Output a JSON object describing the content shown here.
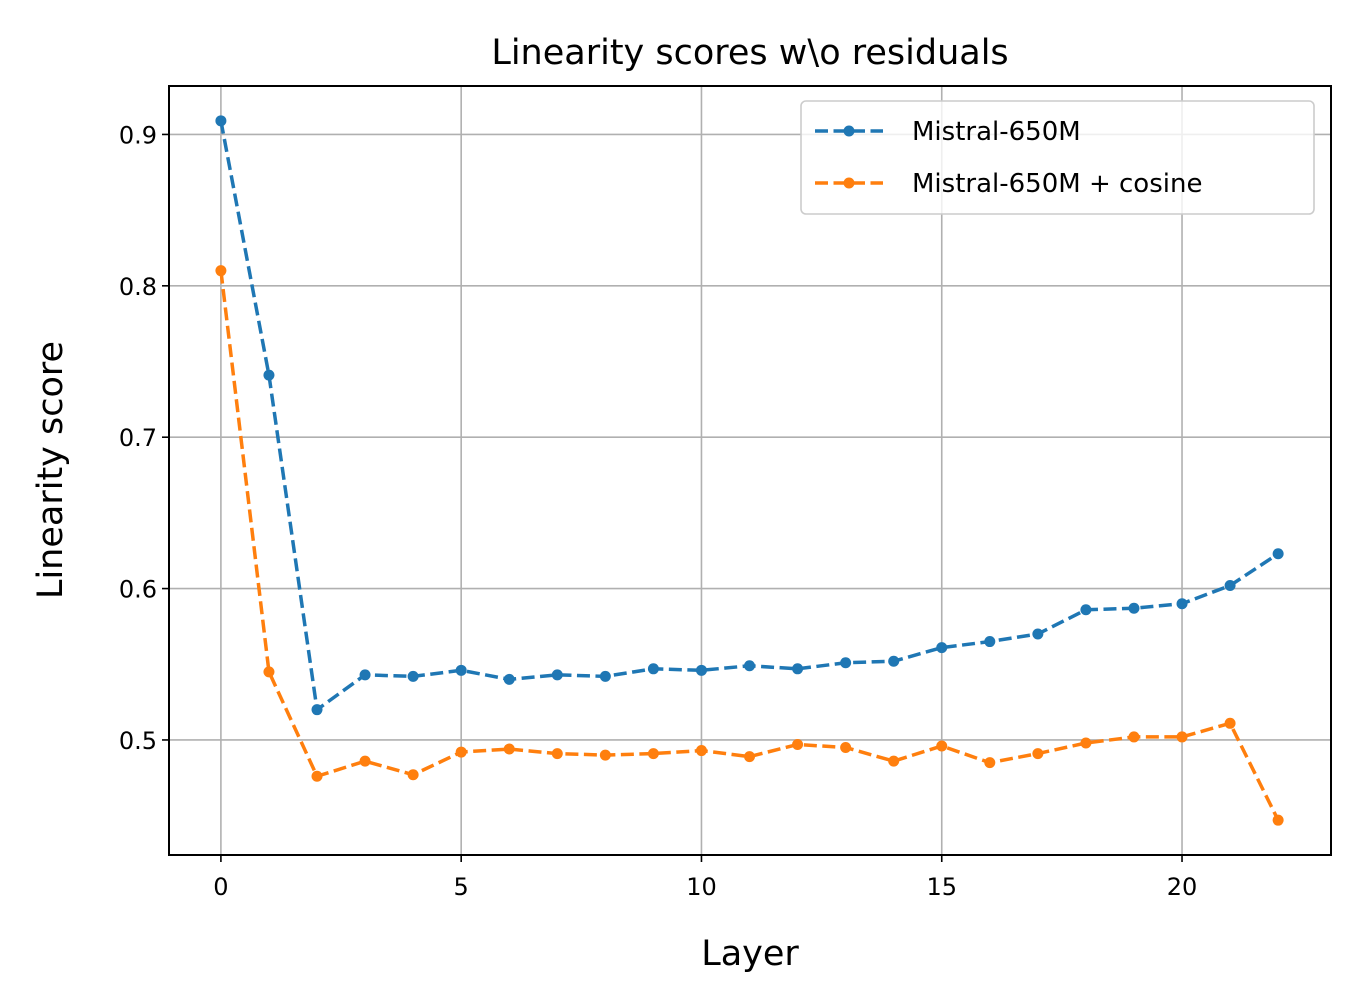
{
  "chart_data": {
    "type": "line",
    "title": "Linearity scores w\\o residuals",
    "xlabel": "Layer",
    "ylabel": "Linearity score",
    "xlim": [
      -1.08,
      23.1
    ],
    "ylim": [
      0.424,
      0.932
    ],
    "xticks": [
      0,
      5,
      10,
      15,
      20
    ],
    "yticks": [
      0.5,
      0.6,
      0.7,
      0.8,
      0.9
    ],
    "xtick_labels": [
      "0",
      "5",
      "10",
      "15",
      "20"
    ],
    "ytick_labels": [
      "0.5",
      "0.6",
      "0.7",
      "0.8",
      "0.9"
    ],
    "grid": true,
    "legend_position": "upper-right",
    "x": [
      0,
      1,
      2,
      3,
      4,
      5,
      6,
      7,
      8,
      9,
      10,
      11,
      12,
      13,
      14,
      15,
      16,
      17,
      18,
      19,
      20,
      21,
      22
    ],
    "series": [
      {
        "name": "Mistral-650M",
        "color": "#1f77b4",
        "line_style": "dashed",
        "marker": "dot",
        "values": [
          0.909,
          0.741,
          0.52,
          0.543,
          0.542,
          0.546,
          0.54,
          0.543,
          0.542,
          0.547,
          0.546,
          0.549,
          0.547,
          0.551,
          0.552,
          0.561,
          0.565,
          0.57,
          0.586,
          0.587,
          0.59,
          0.602,
          0.623
        ]
      },
      {
        "name": "Mistral-650M + cosine",
        "color": "#ff7f0e",
        "line_style": "dashed",
        "marker": "dot",
        "values": [
          0.81,
          0.545,
          0.476,
          0.486,
          0.477,
          0.492,
          0.494,
          0.491,
          0.49,
          0.491,
          0.493,
          0.489,
          0.497,
          0.495,
          0.486,
          0.496,
          0.485,
          0.491,
          0.498,
          0.502,
          0.502,
          0.511,
          0.447
        ]
      }
    ]
  }
}
